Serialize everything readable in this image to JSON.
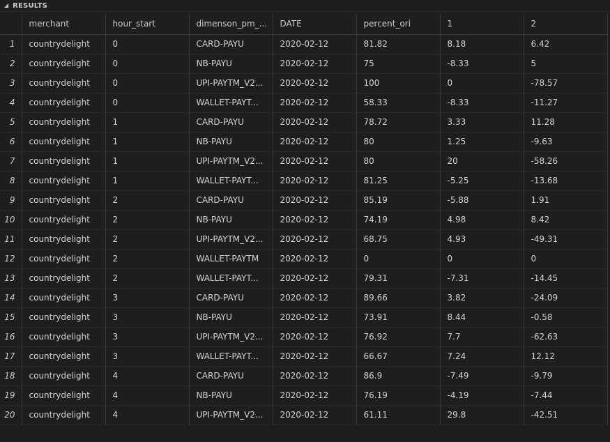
{
  "panel": {
    "title": "RESULTS",
    "collapse_icon": "chevron-down-icon"
  },
  "columns": [
    "",
    "merchant",
    "hour_start",
    "dimenson_pm_...",
    "DATE",
    "percent_ori",
    "1",
    "2"
  ],
  "rows": [
    [
      "1",
      "countrydelight",
      "0",
      "CARD-PAYU",
      "2020-02-12",
      "81.82",
      "8.18",
      "6.42"
    ],
    [
      "2",
      "countrydelight",
      "0",
      "NB-PAYU",
      "2020-02-12",
      "75",
      "-8.33",
      "5"
    ],
    [
      "3",
      "countrydelight",
      "0",
      "UPI-PAYTM_V2...",
      "2020-02-12",
      "100",
      "0",
      "-78.57"
    ],
    [
      "4",
      "countrydelight",
      "0",
      "WALLET-PAYT...",
      "2020-02-12",
      "58.33",
      "-8.33",
      "-11.27"
    ],
    [
      "5",
      "countrydelight",
      "1",
      "CARD-PAYU",
      "2020-02-12",
      "78.72",
      "3.33",
      "11.28"
    ],
    [
      "6",
      "countrydelight",
      "1",
      "NB-PAYU",
      "2020-02-12",
      "80",
      "1.25",
      "-9.63"
    ],
    [
      "7",
      "countrydelight",
      "1",
      "UPI-PAYTM_V2...",
      "2020-02-12",
      "80",
      "20",
      "-58.26"
    ],
    [
      "8",
      "countrydelight",
      "1",
      "WALLET-PAYT...",
      "2020-02-12",
      "81.25",
      "-5.25",
      "-13.68"
    ],
    [
      "9",
      "countrydelight",
      "2",
      "CARD-PAYU",
      "2020-02-12",
      "85.19",
      "-5.88",
      "1.91"
    ],
    [
      "10",
      "countrydelight",
      "2",
      "NB-PAYU",
      "2020-02-12",
      "74.19",
      "4.98",
      "8.42"
    ],
    [
      "11",
      "countrydelight",
      "2",
      "UPI-PAYTM_V2...",
      "2020-02-12",
      "68.75",
      "4.93",
      "-49.31"
    ],
    [
      "12",
      "countrydelight",
      "2",
      "WALLET-PAYTM",
      "2020-02-12",
      "0",
      "0",
      "0"
    ],
    [
      "13",
      "countrydelight",
      "2",
      "WALLET-PAYT...",
      "2020-02-12",
      "79.31",
      "-7.31",
      "-14.45"
    ],
    [
      "14",
      "countrydelight",
      "3",
      "CARD-PAYU",
      "2020-02-12",
      "89.66",
      "3.82",
      "-24.09"
    ],
    [
      "15",
      "countrydelight",
      "3",
      "NB-PAYU",
      "2020-02-12",
      "73.91",
      "8.44",
      "-0.58"
    ],
    [
      "16",
      "countrydelight",
      "3",
      "UPI-PAYTM_V2...",
      "2020-02-12",
      "76.92",
      "7.7",
      "-62.63"
    ],
    [
      "17",
      "countrydelight",
      "3",
      "WALLET-PAYT...",
      "2020-02-12",
      "66.67",
      "7.24",
      "12.12"
    ],
    [
      "18",
      "countrydelight",
      "4",
      "CARD-PAYU",
      "2020-02-12",
      "86.9",
      "-7.49",
      "-9.79"
    ],
    [
      "19",
      "countrydelight",
      "4",
      "NB-PAYU",
      "2020-02-12",
      "76.19",
      "-4.19",
      "-7.44"
    ],
    [
      "20",
      "countrydelight",
      "4",
      "UPI-PAYTM_V2...",
      "2020-02-12",
      "61.11",
      "29.8",
      "-42.51"
    ]
  ]
}
